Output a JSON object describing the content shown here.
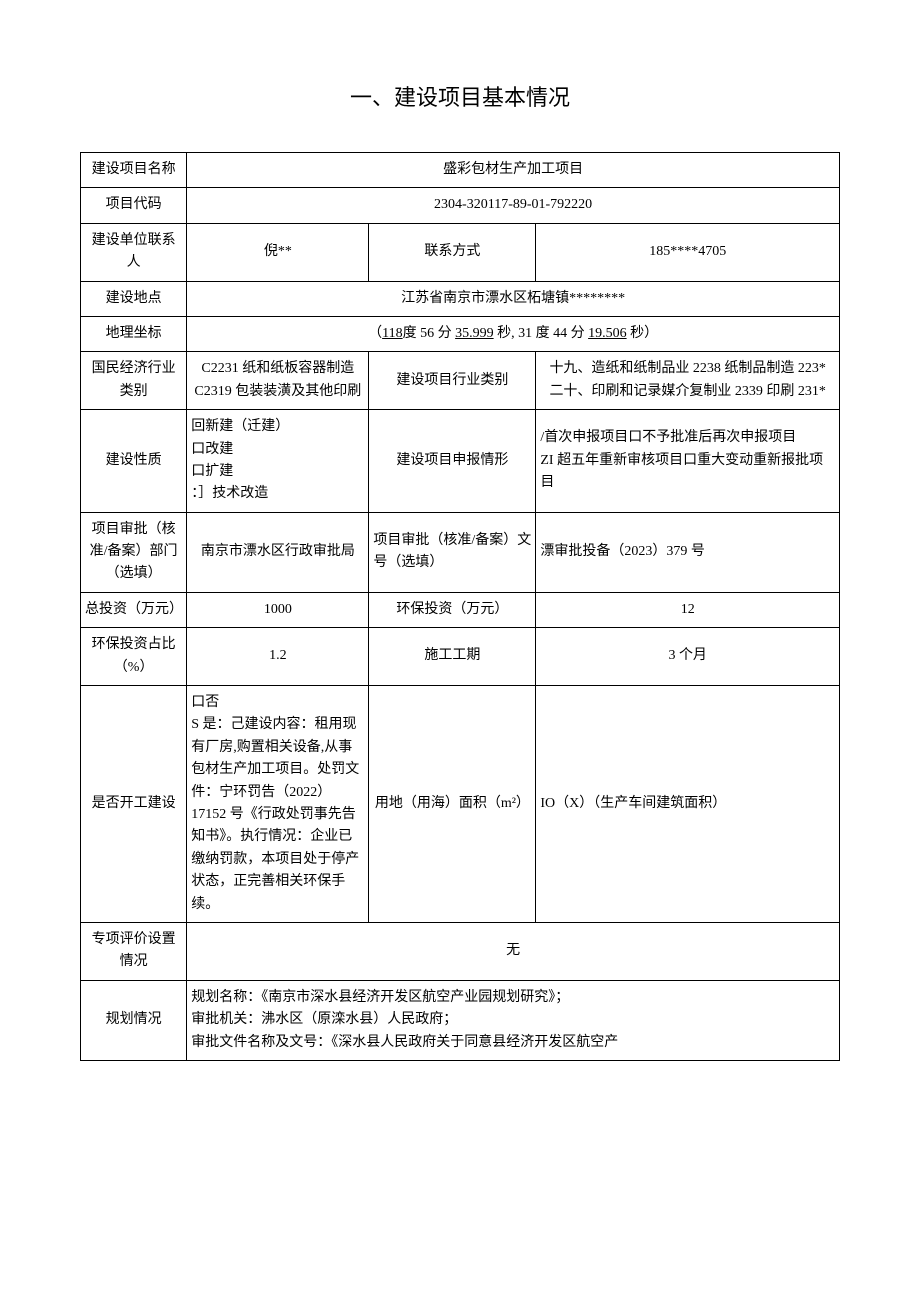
{
  "title": "一、建设项目基本情况",
  "rows": {
    "r1": {
      "label": "建设项目名称",
      "value": "盛彩包材生产加工项目"
    },
    "r2": {
      "label": "项目代码",
      "value": "2304-320117-89-01-792220"
    },
    "r3": {
      "label": "建设单位联系人",
      "v1": "倪**",
      "mid": "联系方式",
      "v2": "185****4705"
    },
    "r4": {
      "label": "建设地点",
      "value": "江苏省南京市漂水区柘塘镇********"
    },
    "r5": {
      "label": "地理坐标",
      "prefix": "（",
      "p1": "118",
      "t1": "度 56 分 ",
      "p2": "35.999",
      "t2": " 秒, 31 度 44 分 ",
      "p3": "19.506",
      "suffix": " 秒）"
    },
    "r6": {
      "label": "国民经济行业类别",
      "v1": "C2231 纸和纸板容器制造\nC2319 包装装潢及其他印刷",
      "mid": "建设项目行业类别",
      "v2": "十九、造纸和纸制品业 2238 纸制品制造 223*\n二十、印刷和记录媒介复制业 2339 印刷 231*"
    },
    "r7": {
      "label": "建设性质",
      "v1": "回新建（迁建）\n口改建\n口扩建\n：］技术改造",
      "mid": "建设项目申报情形",
      "v2": "/首次申报项目口不予批准后再次申报项目\nZI 超五年重新审核项目口重大变动重新报批项目"
    },
    "r8": {
      "label": "项目审批（核准/备案）部门（选填）",
      "v1": "南京市漂水区行政审批局",
      "mid": "项目审批（核准/备案）文号（选填）",
      "v2": "漂审批投备（2023）379 号"
    },
    "r9": {
      "label": "总投资（万元）",
      "v1": "1000",
      "mid": "环保投资（万元）",
      "v2": "12"
    },
    "r10": {
      "label": "环保投资占比（%）",
      "v1": "1.2",
      "mid": "施工工期",
      "v2": "3 个月"
    },
    "r11": {
      "label": "是否开工建设",
      "v1": "口否\nS 是：己建设内容：租用现有厂房,购置相关设备,从事包材生产加工项目。处罚文件：宁环罚告（2022）17152 号《行政处罚事先告知书》。执行情况：企业已缴纳罚款，本项目处于停产状态，正完善相关环保手续。",
      "mid": "用地（用海）面积（m²）",
      "v2": "IO（X）（生产车间建筑面积）"
    },
    "r12": {
      "label": "专项评价设置情况",
      "value": "无"
    },
    "r13": {
      "label": "规划情况",
      "value": "规划名称：《南京市深水县经济开发区航空产业园规划研究》；\n审批机关：沸水区（原滦水县）人民政府；\n审批文件名称及文号：《深水县人民政府关于同意县经济开发区航空产"
    }
  }
}
